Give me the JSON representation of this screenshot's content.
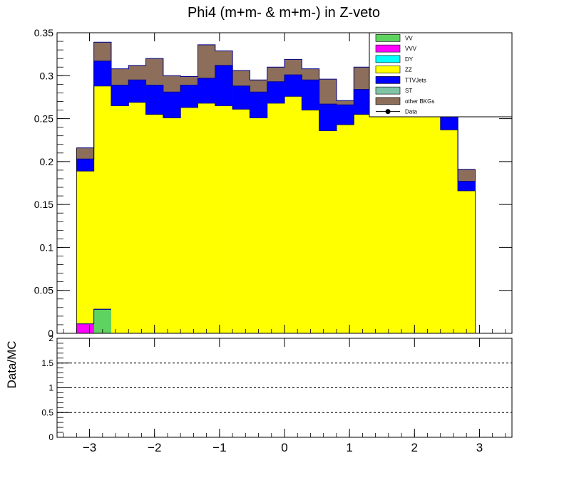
{
  "chart_data": {
    "type": "bar",
    "stacked": true,
    "title": "Phi4 (m+m- & m+m-) in Z-veto",
    "ratio_ylabel": "Data/MC",
    "xlim": [
      -3.5,
      3.5
    ],
    "ylim": [
      0,
      0.35
    ],
    "ratio_ylim": [
      0,
      2
    ],
    "x_ticks": [
      "−3",
      "−2",
      "−1",
      "0",
      "1",
      "2",
      "3"
    ],
    "x_tick_values": [
      -3,
      -2,
      -1,
      0,
      1,
      2,
      3
    ],
    "y_ticks": [
      "0",
      "0.05",
      "0.1",
      "0.15",
      "0.2",
      "0.25",
      "0.3",
      "0.35"
    ],
    "y_tick_values": [
      0,
      0.05,
      0.1,
      0.15,
      0.2,
      0.25,
      0.3,
      0.35
    ],
    "ratio_ticks": [
      "0",
      "0.5",
      "1",
      "1.5",
      "2"
    ],
    "ratio_tick_values": [
      0,
      0.5,
      1,
      1.5,
      2
    ],
    "ratio_reference_lines": [
      0.5,
      1,
      1.5
    ],
    "bin_start": -3.2,
    "bin_width": 0.2667,
    "legend_position": "top-right",
    "legend": [
      {
        "label": "VV",
        "color": "#5fd35f",
        "kind": "box"
      },
      {
        "label": "VVV",
        "color": "#ff00ff",
        "kind": "box"
      },
      {
        "label": "DY",
        "color": "#00ffff",
        "kind": "box"
      },
      {
        "label": "ZZ",
        "color": "#ffff00",
        "kind": "box"
      },
      {
        "label": "TTVJets",
        "color": "#0000ff",
        "kind": "box"
      },
      {
        "label": "ST",
        "color": "#80c4a8",
        "kind": "box"
      },
      {
        "label": "other BKGs",
        "color": "#8c6e5a",
        "kind": "box"
      },
      {
        "label": "Data",
        "color": "#000000",
        "kind": "marker"
      }
    ],
    "series": [
      {
        "name": "VV",
        "color": "#5fd35f",
        "values": [
          0,
          0.028,
          0,
          0,
          0,
          0,
          0,
          0,
          0,
          0,
          0,
          0,
          0,
          0,
          0,
          0,
          0,
          0,
          0,
          0,
          0,
          0,
          0,
          0
        ]
      },
      {
        "name": "VVV",
        "color": "#ff00ff",
        "values": [
          0.011,
          0,
          0,
          0,
          0,
          0,
          0,
          0,
          0,
          0,
          0,
          0,
          0,
          0,
          0,
          0,
          0,
          0,
          0,
          0,
          0,
          0,
          0,
          0
        ]
      },
      {
        "name": "ZZ",
        "color": "#ffff00",
        "values": [
          0.178,
          0.26,
          0.265,
          0.269,
          0.255,
          0.251,
          0.263,
          0.268,
          0.265,
          0.261,
          0.251,
          0.268,
          0.276,
          0.26,
          0.236,
          0.243,
          0.255,
          0.262,
          0.268,
          0.271,
          0.265,
          0.237,
          0.166,
          0
        ]
      },
      {
        "name": "TTVJets",
        "color": "#0000ff",
        "values": [
          0.014,
          0.029,
          0.024,
          0.026,
          0.034,
          0.03,
          0.026,
          0.029,
          0.047,
          0.027,
          0.03,
          0.025,
          0.025,
          0.035,
          0.031,
          0.023,
          0.029,
          0.028,
          0.03,
          0.026,
          0.02,
          0.019,
          0.011,
          0
        ]
      },
      {
        "name": "other BKGs",
        "color": "#8c6e5a",
        "values": [
          0.013,
          0.022,
          0.019,
          0.017,
          0.031,
          0.019,
          0.01,
          0.039,
          0.017,
          0.018,
          0.014,
          0.017,
          0.018,
          0.013,
          0.029,
          0.005,
          0.026,
          0.015,
          0.012,
          0.014,
          0.013,
          0.012,
          0.014,
          0
        ]
      }
    ]
  }
}
